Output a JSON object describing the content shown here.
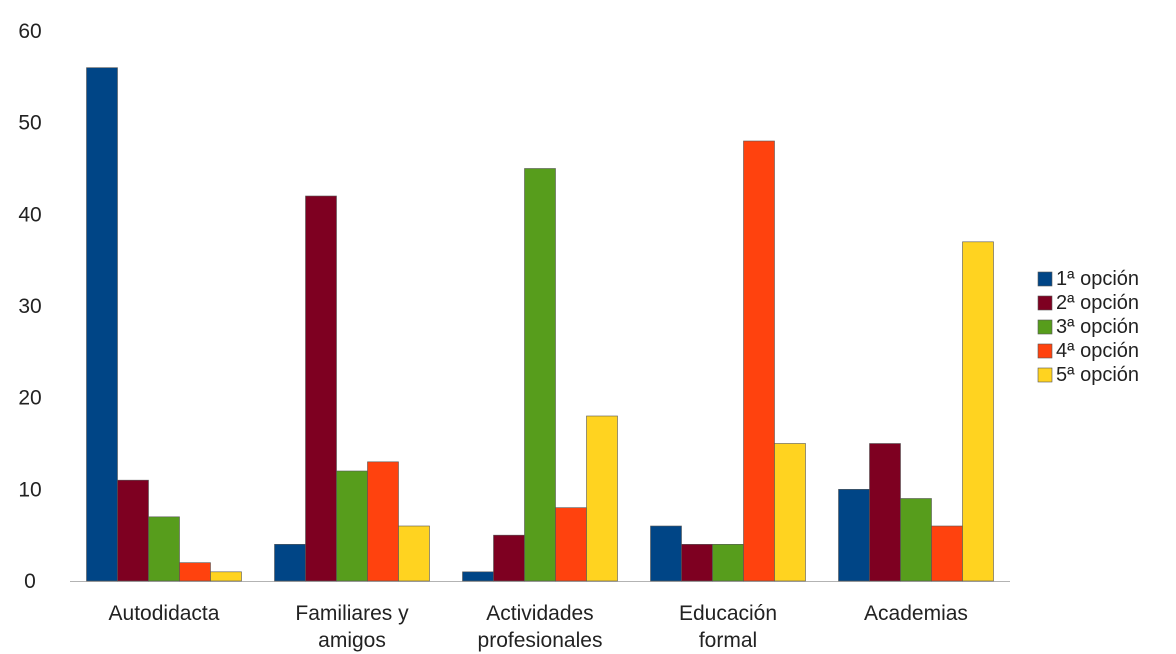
{
  "chart_data": {
    "type": "bar",
    "title": "",
    "xlabel": "",
    "ylabel": "",
    "ylim": [
      0,
      60
    ],
    "yticks": [
      0,
      10,
      20,
      30,
      40,
      50,
      60
    ],
    "grid": false,
    "legend_position": "right",
    "categories": [
      [
        "Autodidacta"
      ],
      [
        "Familiares y",
        "amigos"
      ],
      [
        "Actividades",
        "profesionales"
      ],
      [
        "Educación",
        "formal"
      ],
      [
        "Academias"
      ]
    ],
    "series": [
      {
        "name": "1ª opción",
        "color": "#004586",
        "values": [
          56,
          4,
          1,
          6,
          10
        ]
      },
      {
        "name": "2ª opción",
        "color": "#7e0021",
        "values": [
          11,
          42,
          5,
          4,
          15
        ]
      },
      {
        "name": "3ª opción",
        "color": "#579d1c",
        "values": [
          7,
          12,
          45,
          4,
          9
        ]
      },
      {
        "name": "4ª opción",
        "color": "#ff420e",
        "values": [
          2,
          13,
          8,
          48,
          6
        ]
      },
      {
        "name": "5ª opción",
        "color": "#ffd320",
        "values": [
          1,
          6,
          18,
          15,
          37
        ]
      }
    ]
  }
}
